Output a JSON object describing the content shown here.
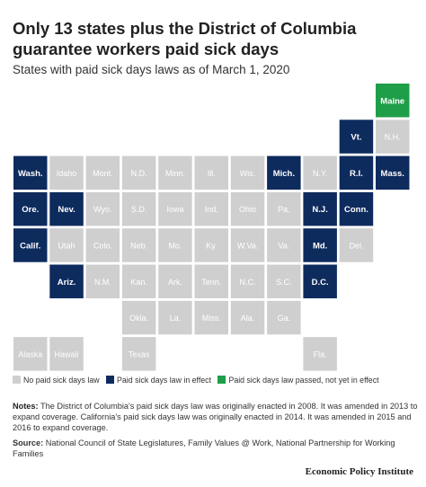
{
  "title": "Only 13 states plus the District of Columbia guarantee workers paid sick days",
  "subtitle": "States with paid sick days laws as of March 1, 2020",
  "colors": {
    "none": "#cfcfcf",
    "effect": "#0e2b5e",
    "passed": "#1e9e48"
  },
  "legend": {
    "none_label": "No paid sick days law",
    "effect_label": "Paid sick days law in effect",
    "passed_label": "Paid sick days law passed, not yet in effect"
  },
  "notes": {
    "label": "Notes:",
    "text": "The District of Columbia's paid sick days law was originally enacted in 2008. It was amended in 2013 to expand coverage. California's paid sick days law was originally enacted in 2014. It was amended in 2015 and 2016 to expand coverage."
  },
  "source": {
    "label": "Source:",
    "text": "National Council of State Legislatures, Family Values @ Work, National Partnership for Working Families"
  },
  "brand": "Economic Policy Institute",
  "chart_data": {
    "type": "tile-map",
    "title": "Only 13 states plus the District of Columbia guarantee workers paid sick days",
    "subtitle": "States with paid sick days laws as of March 1, 2020",
    "categories": [
      "No paid sick days law",
      "Paid sick days law in effect",
      "Paid sick days law passed, not yet in effect"
    ],
    "tiles": [
      {
        "label": "Maine",
        "row": 0,
        "col": 10,
        "status": "passed"
      },
      {
        "label": "Vt.",
        "row": 1,
        "col": 9,
        "status": "effect"
      },
      {
        "label": "N.H.",
        "row": 1,
        "col": 10,
        "status": "none"
      },
      {
        "label": "Wash.",
        "row": 2,
        "col": 0,
        "status": "effect"
      },
      {
        "label": "Idaho",
        "row": 2,
        "col": 1,
        "status": "none"
      },
      {
        "label": "Mont.",
        "row": 2,
        "col": 2,
        "status": "none"
      },
      {
        "label": "N.D.",
        "row": 2,
        "col": 3,
        "status": "none"
      },
      {
        "label": "Minn.",
        "row": 2,
        "col": 4,
        "status": "none"
      },
      {
        "label": "Ill.",
        "row": 2,
        "col": 5,
        "status": "none"
      },
      {
        "label": "Wis.",
        "row": 2,
        "col": 6,
        "status": "none"
      },
      {
        "label": "Mich.",
        "row": 2,
        "col": 7,
        "status": "effect"
      },
      {
        "label": "N.Y.",
        "row": 2,
        "col": 8,
        "status": "none"
      },
      {
        "label": "R.I.",
        "row": 2,
        "col": 9,
        "status": "effect"
      },
      {
        "label": "Mass.",
        "row": 2,
        "col": 10,
        "status": "effect"
      },
      {
        "label": "Ore.",
        "row": 3,
        "col": 0,
        "status": "effect"
      },
      {
        "label": "Nev.",
        "row": 3,
        "col": 1,
        "status": "effect"
      },
      {
        "label": "Wyo.",
        "row": 3,
        "col": 2,
        "status": "none"
      },
      {
        "label": "S.D.",
        "row": 3,
        "col": 3,
        "status": "none"
      },
      {
        "label": "Iowa",
        "row": 3,
        "col": 4,
        "status": "none"
      },
      {
        "label": "Ind.",
        "row": 3,
        "col": 5,
        "status": "none"
      },
      {
        "label": "Ohio",
        "row": 3,
        "col": 6,
        "status": "none"
      },
      {
        "label": "Pa.",
        "row": 3,
        "col": 7,
        "status": "none"
      },
      {
        "label": "N.J.",
        "row": 3,
        "col": 8,
        "status": "effect"
      },
      {
        "label": "Conn.",
        "row": 3,
        "col": 9,
        "status": "effect"
      },
      {
        "label": "Calif.",
        "row": 4,
        "col": 0,
        "status": "effect"
      },
      {
        "label": "Utah",
        "row": 4,
        "col": 1,
        "status": "none"
      },
      {
        "label": "Colo.",
        "row": 4,
        "col": 2,
        "status": "none"
      },
      {
        "label": "Neb.",
        "row": 4,
        "col": 3,
        "status": "none"
      },
      {
        "label": "Mo.",
        "row": 4,
        "col": 4,
        "status": "none"
      },
      {
        "label": "Ky.",
        "row": 4,
        "col": 5,
        "status": "none"
      },
      {
        "label": "W.Va.",
        "row": 4,
        "col": 6,
        "status": "none"
      },
      {
        "label": "Va.",
        "row": 4,
        "col": 7,
        "status": "none"
      },
      {
        "label": "Md.",
        "row": 4,
        "col": 8,
        "status": "effect"
      },
      {
        "label": "Del.",
        "row": 4,
        "col": 9,
        "status": "none"
      },
      {
        "label": "Ariz.",
        "row": 5,
        "col": 1,
        "status": "effect"
      },
      {
        "label": "N.M.",
        "row": 5,
        "col": 2,
        "status": "none"
      },
      {
        "label": "Kan.",
        "row": 5,
        "col": 3,
        "status": "none"
      },
      {
        "label": "Ark.",
        "row": 5,
        "col": 4,
        "status": "none"
      },
      {
        "label": "Tenn.",
        "row": 5,
        "col": 5,
        "status": "none"
      },
      {
        "label": "N.C.",
        "row": 5,
        "col": 6,
        "status": "none"
      },
      {
        "label": "S.C.",
        "row": 5,
        "col": 7,
        "status": "none"
      },
      {
        "label": "D.C.",
        "row": 5,
        "col": 8,
        "status": "effect"
      },
      {
        "label": "Okla.",
        "row": 6,
        "col": 3,
        "status": "none"
      },
      {
        "label": "La.",
        "row": 6,
        "col": 4,
        "status": "none"
      },
      {
        "label": "Miss.",
        "row": 6,
        "col": 5,
        "status": "none"
      },
      {
        "label": "Ala.",
        "row": 6,
        "col": 6,
        "status": "none"
      },
      {
        "label": "Ga.",
        "row": 6,
        "col": 7,
        "status": "none"
      },
      {
        "label": "Alaska",
        "row": 7,
        "col": 0,
        "status": "none"
      },
      {
        "label": "Hawaii",
        "row": 7,
        "col": 1,
        "status": "none"
      },
      {
        "label": "Texas",
        "row": 7,
        "col": 3,
        "status": "none"
      },
      {
        "label": "Fla.",
        "row": 7,
        "col": 8,
        "status": "none"
      }
    ]
  }
}
